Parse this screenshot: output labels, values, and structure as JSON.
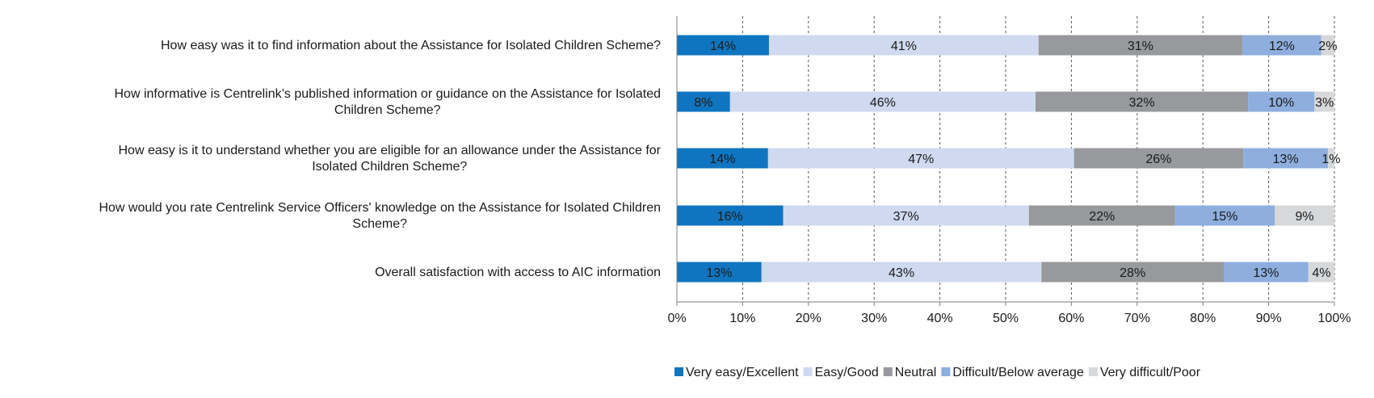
{
  "chart_data": {
    "type": "bar",
    "orientation": "horizontal",
    "stacked": "percent",
    "categories": [
      [
        "How easy was it to find information about the Assistance for Isolated Children Scheme?"
      ],
      [
        "How informative is Centrelink’s published information or guidance on the Assistance for Isolated",
        "Children Scheme?"
      ],
      [
        "How easy is it to understand whether you are eligible for an allowance under the Assistance for",
        "Isolated Children Scheme?"
      ],
      [
        "How would you rate Centrelink Service Officers' knowledge on the Assistance for Isolated Children",
        "Scheme?"
      ],
      [
        "Overall satisfaction with access to AIC information"
      ]
    ],
    "series": [
      {
        "name": "Very easy/Excellent",
        "color": "#0F75C0",
        "label_color": "#1a1a1a",
        "values": [
          14,
          8,
          14,
          16,
          13
        ],
        "labels": [
          "14%",
          "8%",
          "14%",
          "16%",
          "13%"
        ]
      },
      {
        "name": "Easy/Good",
        "color": "#CFDAF0",
        "label_color": "#1a1a1a",
        "values": [
          41,
          46,
          47,
          37,
          43
        ],
        "labels": [
          "41%",
          "46%",
          "47%",
          "37%",
          "43%"
        ]
      },
      {
        "name": "Neutral",
        "color": "#97999C",
        "label_color": "#1a1a1a",
        "values": [
          31,
          32,
          26,
          22,
          28
        ],
        "labels": [
          "31%",
          "32%",
          "26%",
          "22%",
          "28%"
        ]
      },
      {
        "name": "Difficult/Below average",
        "color": "#8EAEDE",
        "label_color": "#1a1a1a",
        "values": [
          12,
          10,
          13,
          15,
          13
        ],
        "labels": [
          "12%",
          "10%",
          "13%",
          "15%",
          "13%"
        ]
      },
      {
        "name": "Very difficult/Poor",
        "color": "#D7D8DA",
        "label_color": "#1a1a1a",
        "values": [
          2,
          3,
          1,
          9,
          4
        ],
        "labels": [
          "2%",
          "3%",
          "1%",
          "9%",
          "4%"
        ]
      }
    ],
    "xlim": [
      0,
      100
    ],
    "xticks": [
      "0%",
      "10%",
      "20%",
      "30%",
      "40%",
      "50%",
      "60%",
      "70%",
      "80%",
      "90%",
      "100%"
    ],
    "grid": "vertical-dashed",
    "legend": "bottom"
  }
}
